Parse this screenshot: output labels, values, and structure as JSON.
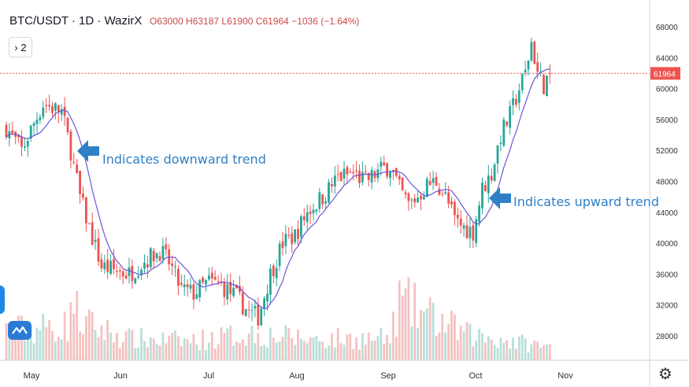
{
  "header": {
    "symbol": "BTC/USDT · 1D · WazirX",
    "open": "O63000",
    "high": "H63187",
    "low": "L61900",
    "close": "C61964",
    "change": "−1036 (−1.64%)"
  },
  "indicator_button": "› 2",
  "price_tag": "61964",
  "annotations": {
    "downward": "Indicates downward trend",
    "upward": "Indicates upward trend"
  },
  "colors": {
    "up": "#26a69a",
    "down": "#ef5350",
    "ma": "#6a55d9",
    "arrow": "#2f80c6",
    "price_line": "#ef5350"
  },
  "chart_data": {
    "type": "candlestick",
    "ylim": [
      24000,
      70000
    ],
    "y_ticks": [
      "68000",
      "64000",
      "60000",
      "56000",
      "52000",
      "48000",
      "44000",
      "40000",
      "36000",
      "32000",
      "28000"
    ],
    "x_labels": [
      "May",
      "Jun",
      "Jul",
      "Aug",
      "Sep",
      "Oct",
      "Nov"
    ],
    "last_price": 61964,
    "close_trend": [
      [
        0,
        55000
      ],
      [
        5,
        52000
      ],
      [
        9,
        55500
      ],
      [
        12,
        58000
      ],
      [
        18,
        57000
      ],
      [
        21,
        52000
      ],
      [
        24,
        46000
      ],
      [
        27,
        42000
      ],
      [
        31,
        37000
      ],
      [
        35,
        36500
      ],
      [
        40,
        36000
      ],
      [
        46,
        38000
      ],
      [
        50,
        39000
      ],
      [
        53,
        37500
      ],
      [
        57,
        34000
      ],
      [
        61,
        33500
      ],
      [
        66,
        35000
      ],
      [
        70,
        34500
      ],
      [
        75,
        33000
      ],
      [
        79,
        31000
      ],
      [
        82,
        30500
      ],
      [
        86,
        36000
      ],
      [
        90,
        40000
      ],
      [
        94,
        41000
      ],
      [
        98,
        44000
      ],
      [
        103,
        46000
      ],
      [
        108,
        48500
      ],
      [
        113,
        49000
      ],
      [
        117,
        48000
      ],
      [
        122,
        49500
      ],
      [
        125,
        50000
      ],
      [
        128,
        47000
      ],
      [
        131,
        45000
      ],
      [
        134,
        46000
      ],
      [
        137,
        47500
      ],
      [
        140,
        48000
      ],
      [
        143,
        46000
      ],
      [
        146,
        43000
      ],
      [
        149,
        42000
      ],
      [
        152,
        41500
      ],
      [
        155,
        47000
      ],
      [
        158,
        49000
      ],
      [
        161,
        54000
      ],
      [
        164,
        56500
      ],
      [
        167,
        60000
      ],
      [
        169,
        62000
      ],
      [
        171,
        66000
      ],
      [
        173,
        62000
      ],
      [
        175,
        60500
      ],
      [
        177,
        61964
      ]
    ],
    "volume_trend": [
      [
        0,
        0.28
      ],
      [
        20,
        0.32
      ],
      [
        21,
        0.55
      ],
      [
        25,
        0.35
      ],
      [
        40,
        0.2
      ],
      [
        60,
        0.18
      ],
      [
        80,
        0.25
      ],
      [
        90,
        0.22
      ],
      [
        100,
        0.2
      ],
      [
        125,
        0.2
      ],
      [
        128,
        0.55
      ],
      [
        150,
        0.24
      ],
      [
        160,
        0.2
      ],
      [
        177,
        0.12
      ]
    ],
    "ma_period": 9,
    "candle_count": 178
  }
}
